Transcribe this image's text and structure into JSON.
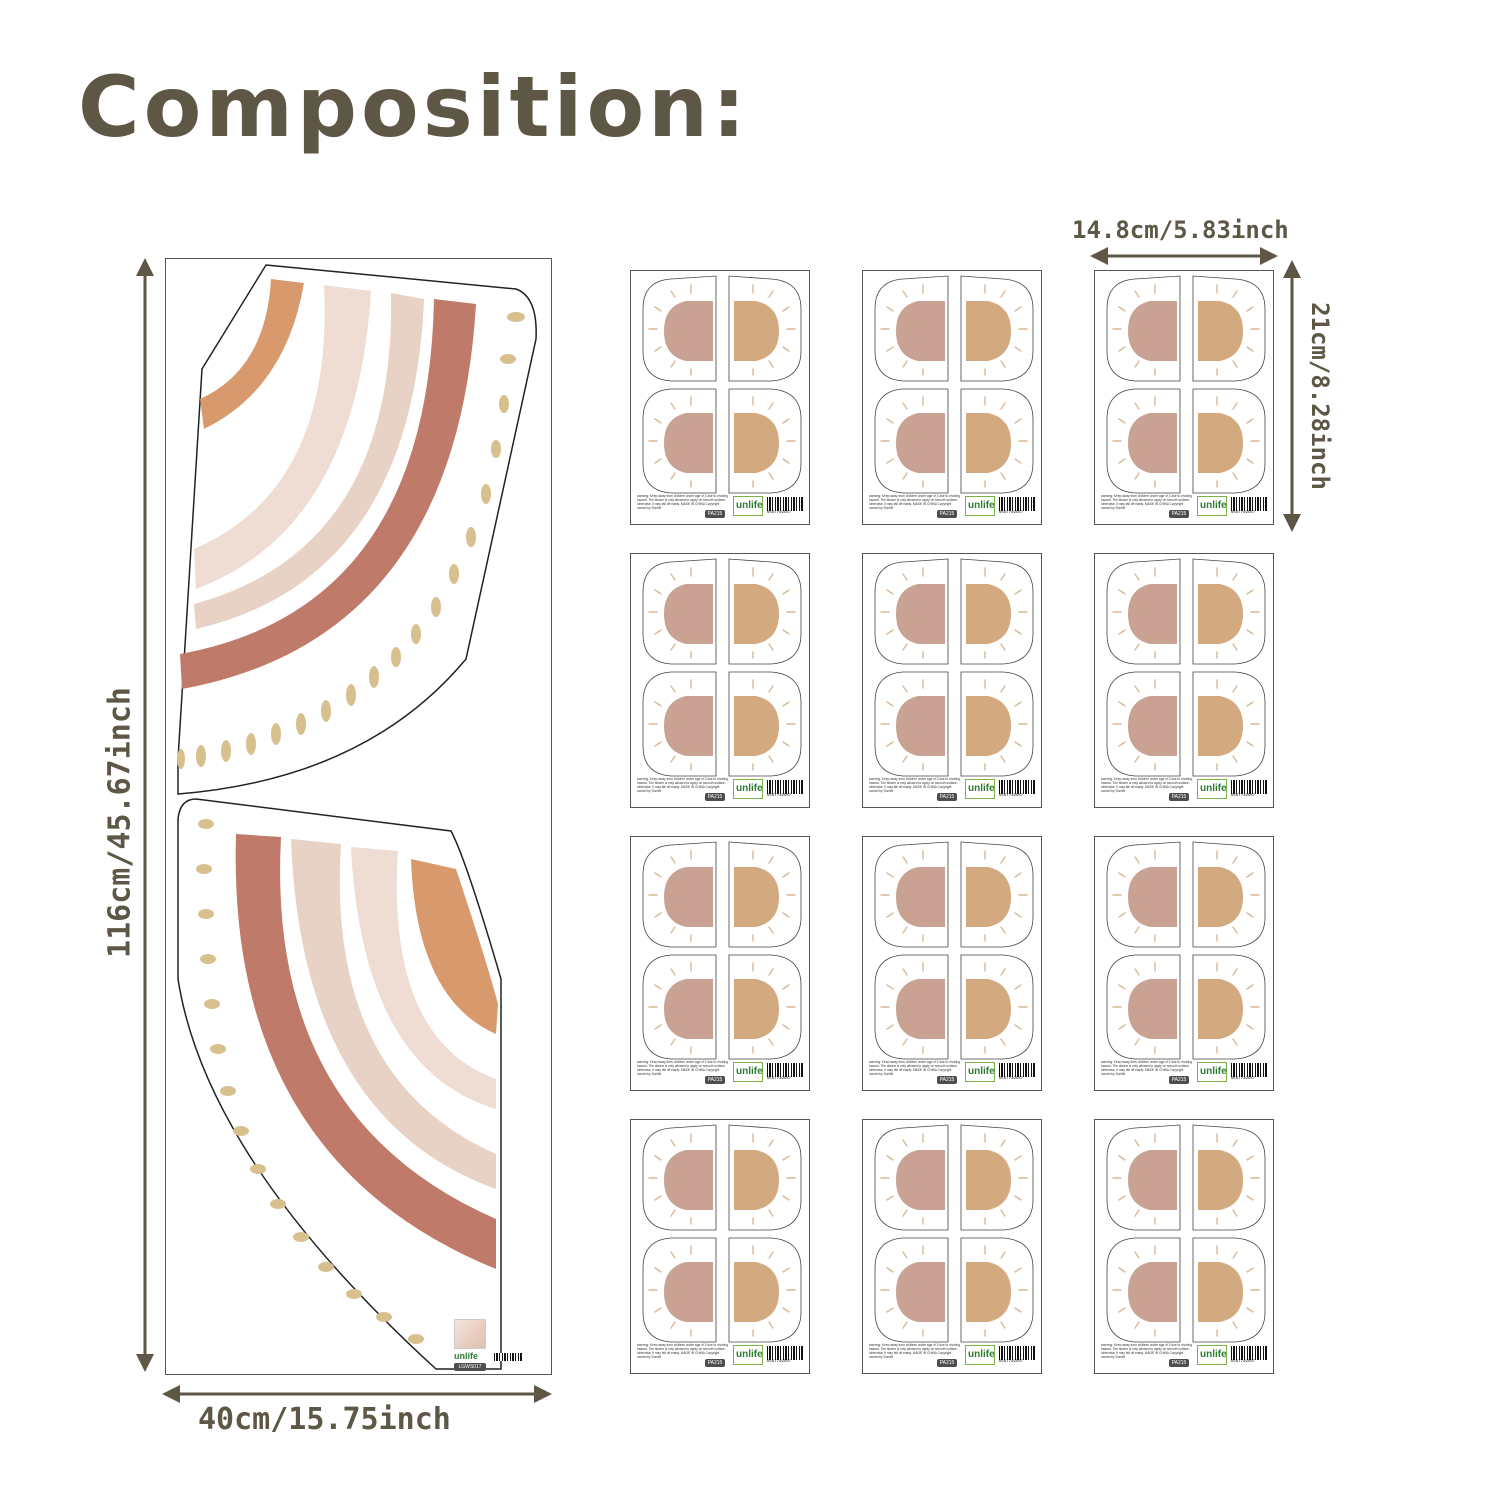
{
  "title": "Composition:",
  "dimensions": {
    "big_height": "116cm/45.67inch",
    "big_width": "40cm/15.75inch",
    "small_width": "14.8cm/5.83inch",
    "small_height": "21cm/8.28inch"
  },
  "big_sheet": {
    "brand": "unlife",
    "code": "LGWS017"
  },
  "sun_sheet": {
    "warning": "warning: Keep away from children under age of 3 due to choking hazard. The sticker is only allowed to apply on smooth surface, otherwise, it may fall off easily. MADE IN CHINA Copyright owned by Sunlife",
    "brand": "unlife",
    "code": "PA215",
    "barcode_number": "6567749587"
  },
  "colors": {
    "text": "#5e5746",
    "terracotta": "#c07a6a",
    "blush": "#e8d2c6",
    "pale_blush": "#efdcd2",
    "orange": "#d89a6c",
    "mustard_dash": "#d8c08e",
    "sun_pink": "#c9a294",
    "sun_tan": "#d3aa80",
    "ray": "#d9b896"
  }
}
